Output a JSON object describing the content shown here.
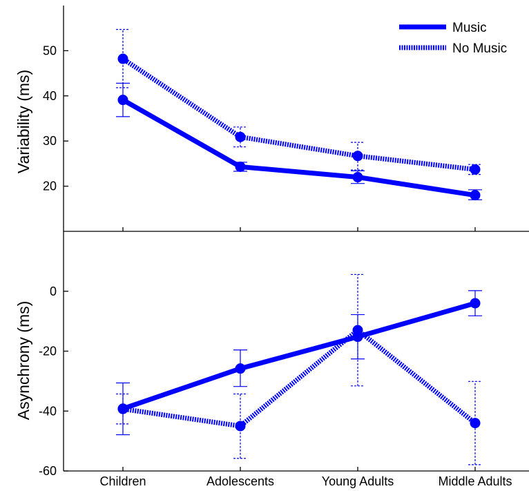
{
  "chart_data": [
    {
      "type": "line",
      "ylabel": "Variability (ms)",
      "categories": [
        "Children",
        "Adolescents",
        "Young Adults",
        "Middle Adults"
      ],
      "ylim": [
        10,
        60
      ],
      "yticks": [
        20,
        30,
        40,
        50
      ],
      "grid": false,
      "legend": "top-right",
      "series": [
        {
          "name": "Music",
          "style": "solid",
          "color": "#0000ff",
          "values": [
            39.1,
            24.3,
            22.0,
            18.0
          ],
          "err_low": [
            35.4,
            23.3,
            20.6,
            17.0
          ],
          "err_high": [
            42.8,
            25.3,
            23.4,
            19.2
          ]
        },
        {
          "name": "No Music",
          "style": "dotted",
          "color": "#0000ff",
          "values": [
            48.2,
            30.9,
            26.7,
            23.7
          ],
          "err_low": [
            41.8,
            28.7,
            23.6,
            22.6
          ],
          "err_high": [
            54.7,
            33.1,
            29.7,
            24.8
          ]
        }
      ]
    },
    {
      "type": "line",
      "ylabel": "Asynchrony (ms)",
      "categories": [
        "Children",
        "Adolescents",
        "Young Adults",
        "Middle Adults"
      ],
      "ylim": [
        -60,
        20
      ],
      "yticks": [
        -60,
        -40,
        -20,
        0
      ],
      "grid": false,
      "series": [
        {
          "name": "Music",
          "style": "solid",
          "color": "#0000ff",
          "values": [
            -39.2,
            -25.8,
            -15.2,
            -4.0
          ],
          "err_low": [
            -47.9,
            -31.8,
            -22.6,
            -8.2
          ],
          "err_high": [
            -30.6,
            -19.6,
            -7.8,
            0.2
          ]
        },
        {
          "name": "No Music",
          "style": "dotted",
          "color": "#0000ff",
          "values": [
            -39.3,
            -45.0,
            -13.0,
            -44.0
          ],
          "err_low": [
            -44.3,
            -55.8,
            -31.6,
            -57.9
          ],
          "err_high": [
            -34.3,
            -34.3,
            5.6,
            -30.1
          ]
        }
      ]
    }
  ]
}
